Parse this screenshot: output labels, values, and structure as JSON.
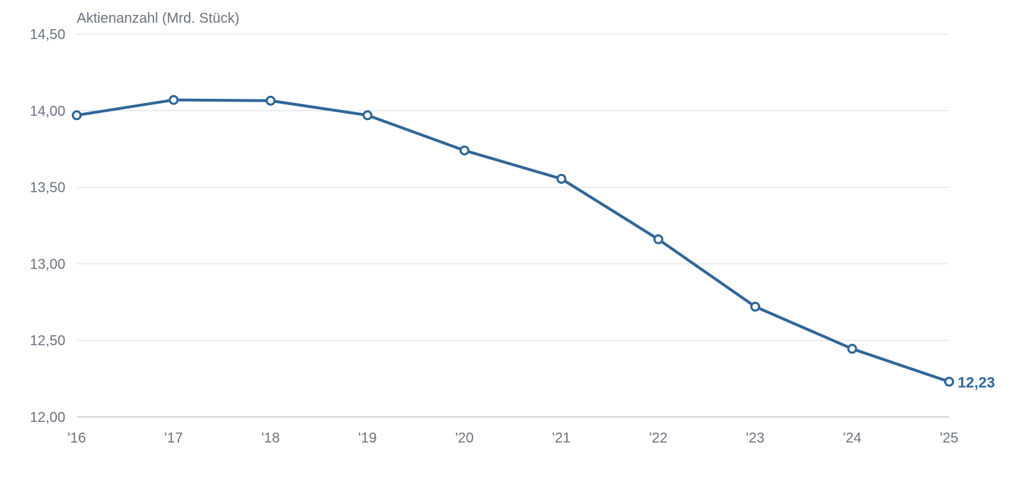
{
  "chart_data": {
    "type": "line",
    "ylabel": "Aktienanzahl (Mrd. Stück)",
    "categories": [
      "'16",
      "'17",
      "'18",
      "'19",
      "'20",
      "'21",
      "'22",
      "'23",
      "'24",
      "'25"
    ],
    "series": [
      {
        "values": [
          13.97,
          14.07,
          14.065,
          13.97,
          13.74,
          13.555,
          13.16,
          12.72,
          12.445,
          12.23
        ]
      }
    ],
    "ylim": [
      12.0,
      14.5
    ],
    "yticks": [
      {
        "value": 14.5,
        "label": "14,50"
      },
      {
        "value": 14.0,
        "label": "14,00"
      },
      {
        "value": 13.5,
        "label": "13,50"
      },
      {
        "value": 13.0,
        "label": "13,00"
      },
      {
        "value": 12.5,
        "label": "12,50"
      },
      {
        "value": 12.0,
        "label": "12,00"
      }
    ],
    "end_label": "12,23",
    "grid": true,
    "legend": "none",
    "colors": {
      "line": "#2e6699",
      "grid": "#e5e7eb",
      "text": "#6b7280"
    }
  }
}
